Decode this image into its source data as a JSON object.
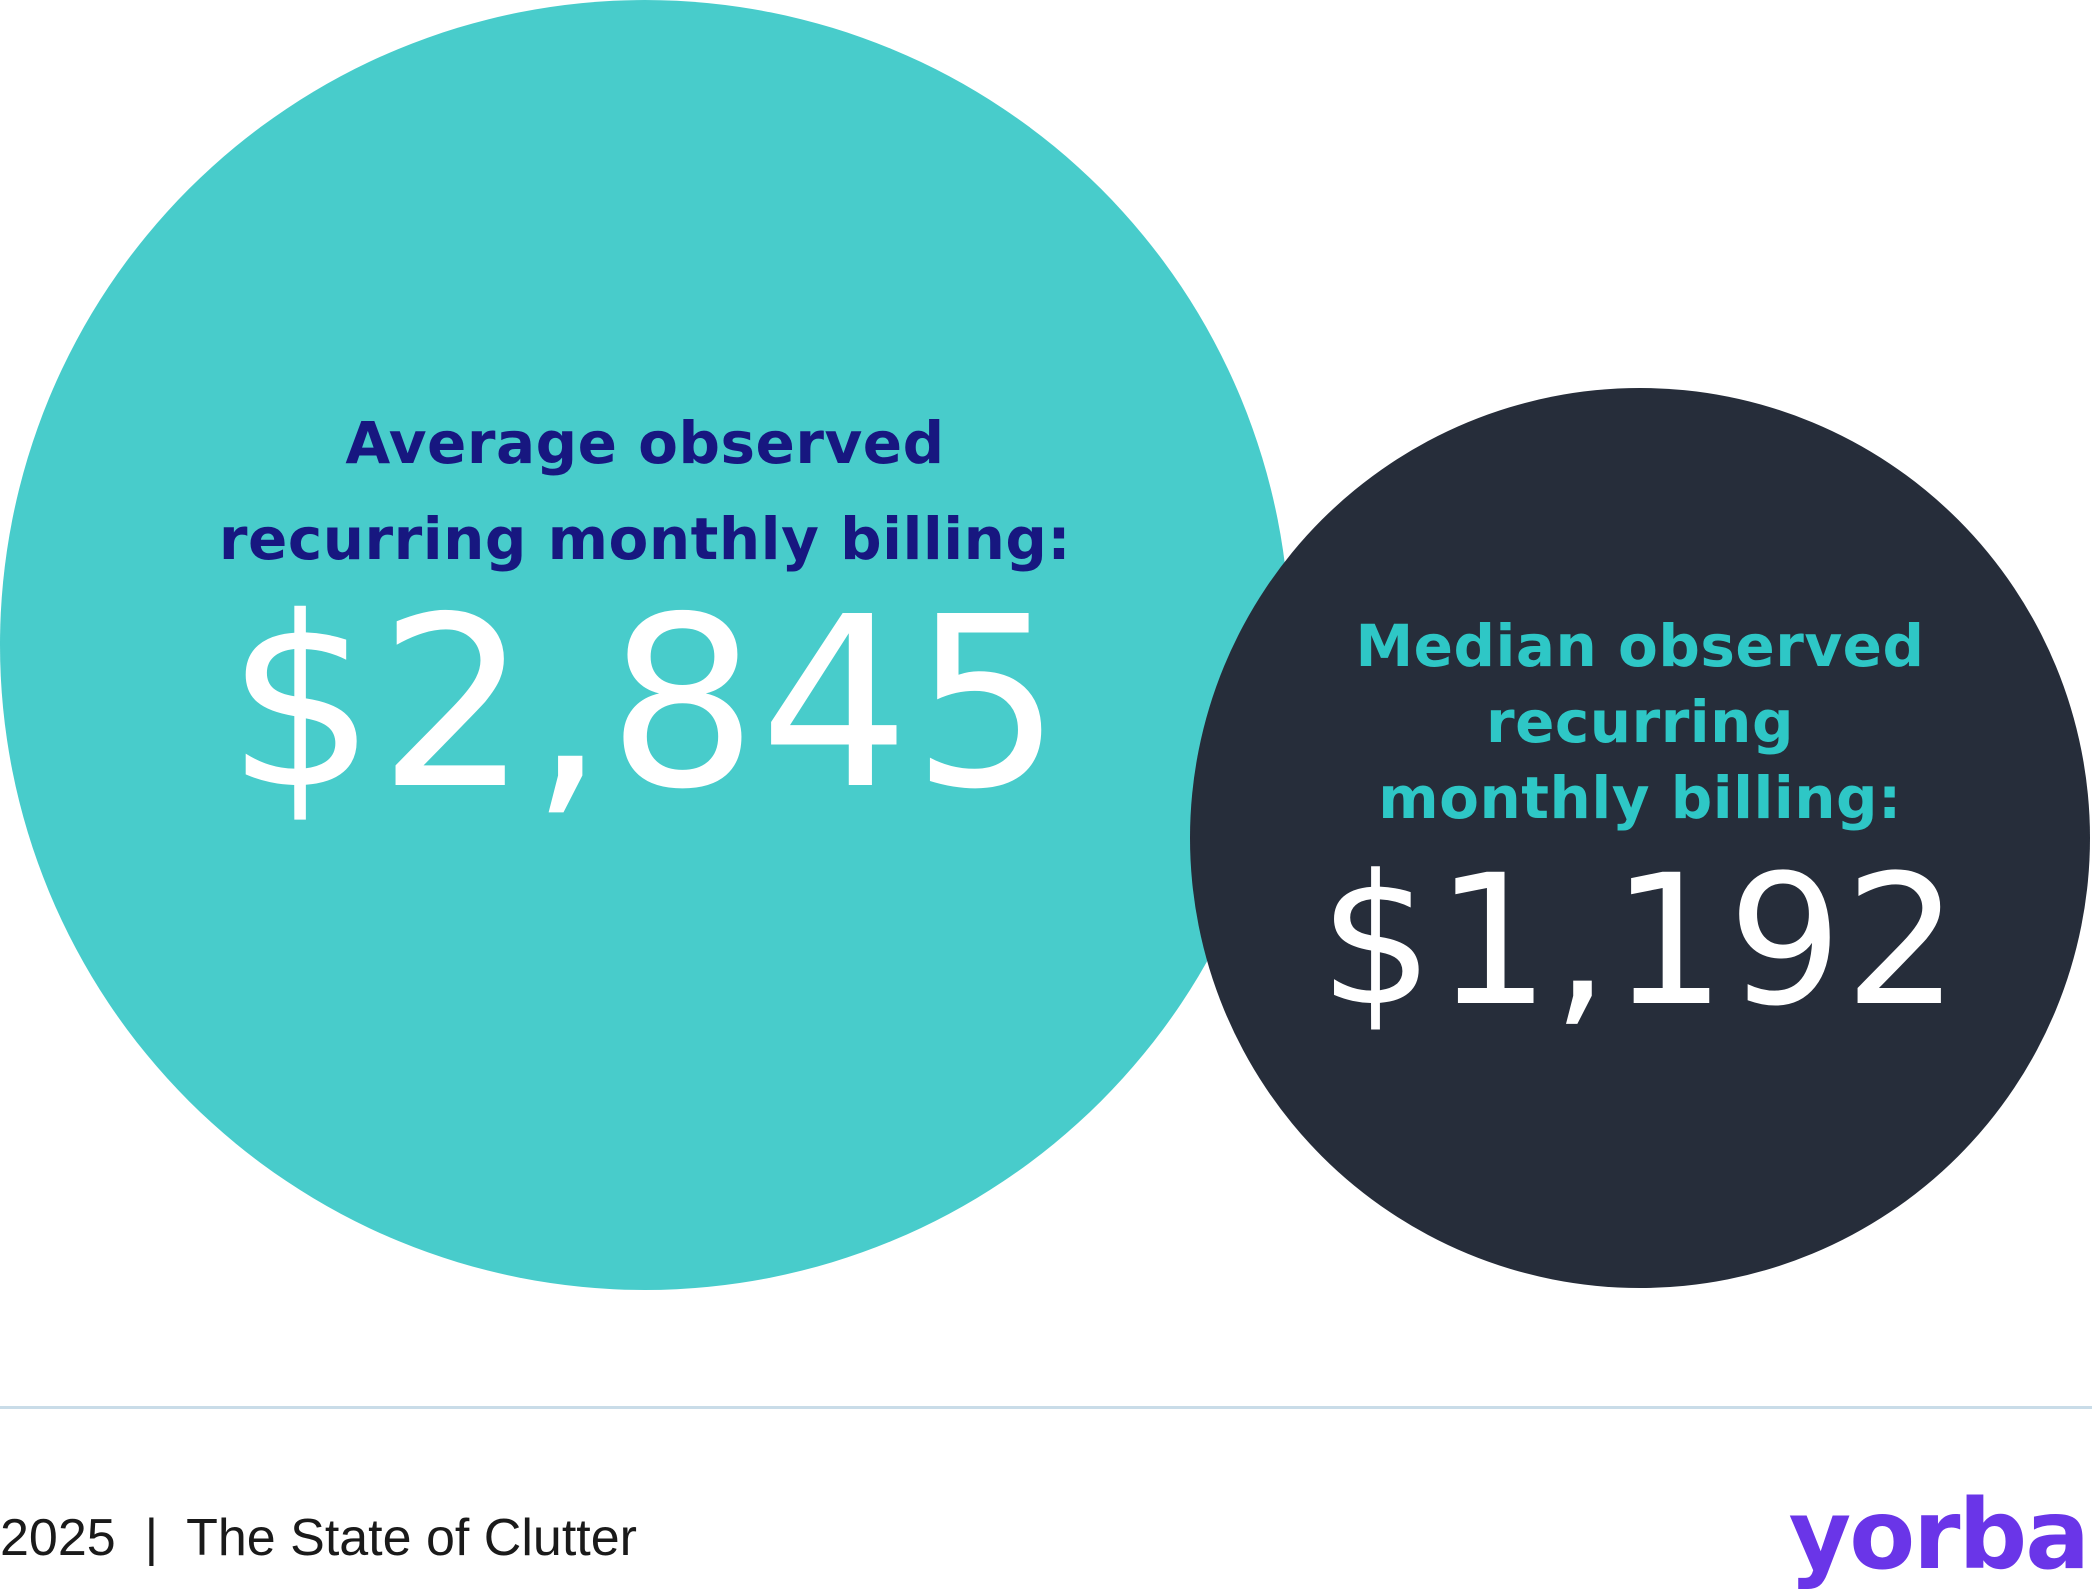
{
  "colors": {
    "teal": "#48CCCB",
    "dark": "#262D3A",
    "navy": "#171780",
    "brand_purple": "#6A35E8",
    "divider": "#C9DCE8"
  },
  "average": {
    "label_line1": "Average observed",
    "label_line2": "recurring monthly billing:",
    "value": "$2,845"
  },
  "median": {
    "label_line1": "Median observed",
    "label_line2": "recurring",
    "label_line3": "monthly billing:",
    "value": "$1,192"
  },
  "footer": {
    "year": "2025",
    "separator": "|",
    "title": "The State of Clutter",
    "brand": "yorba"
  }
}
